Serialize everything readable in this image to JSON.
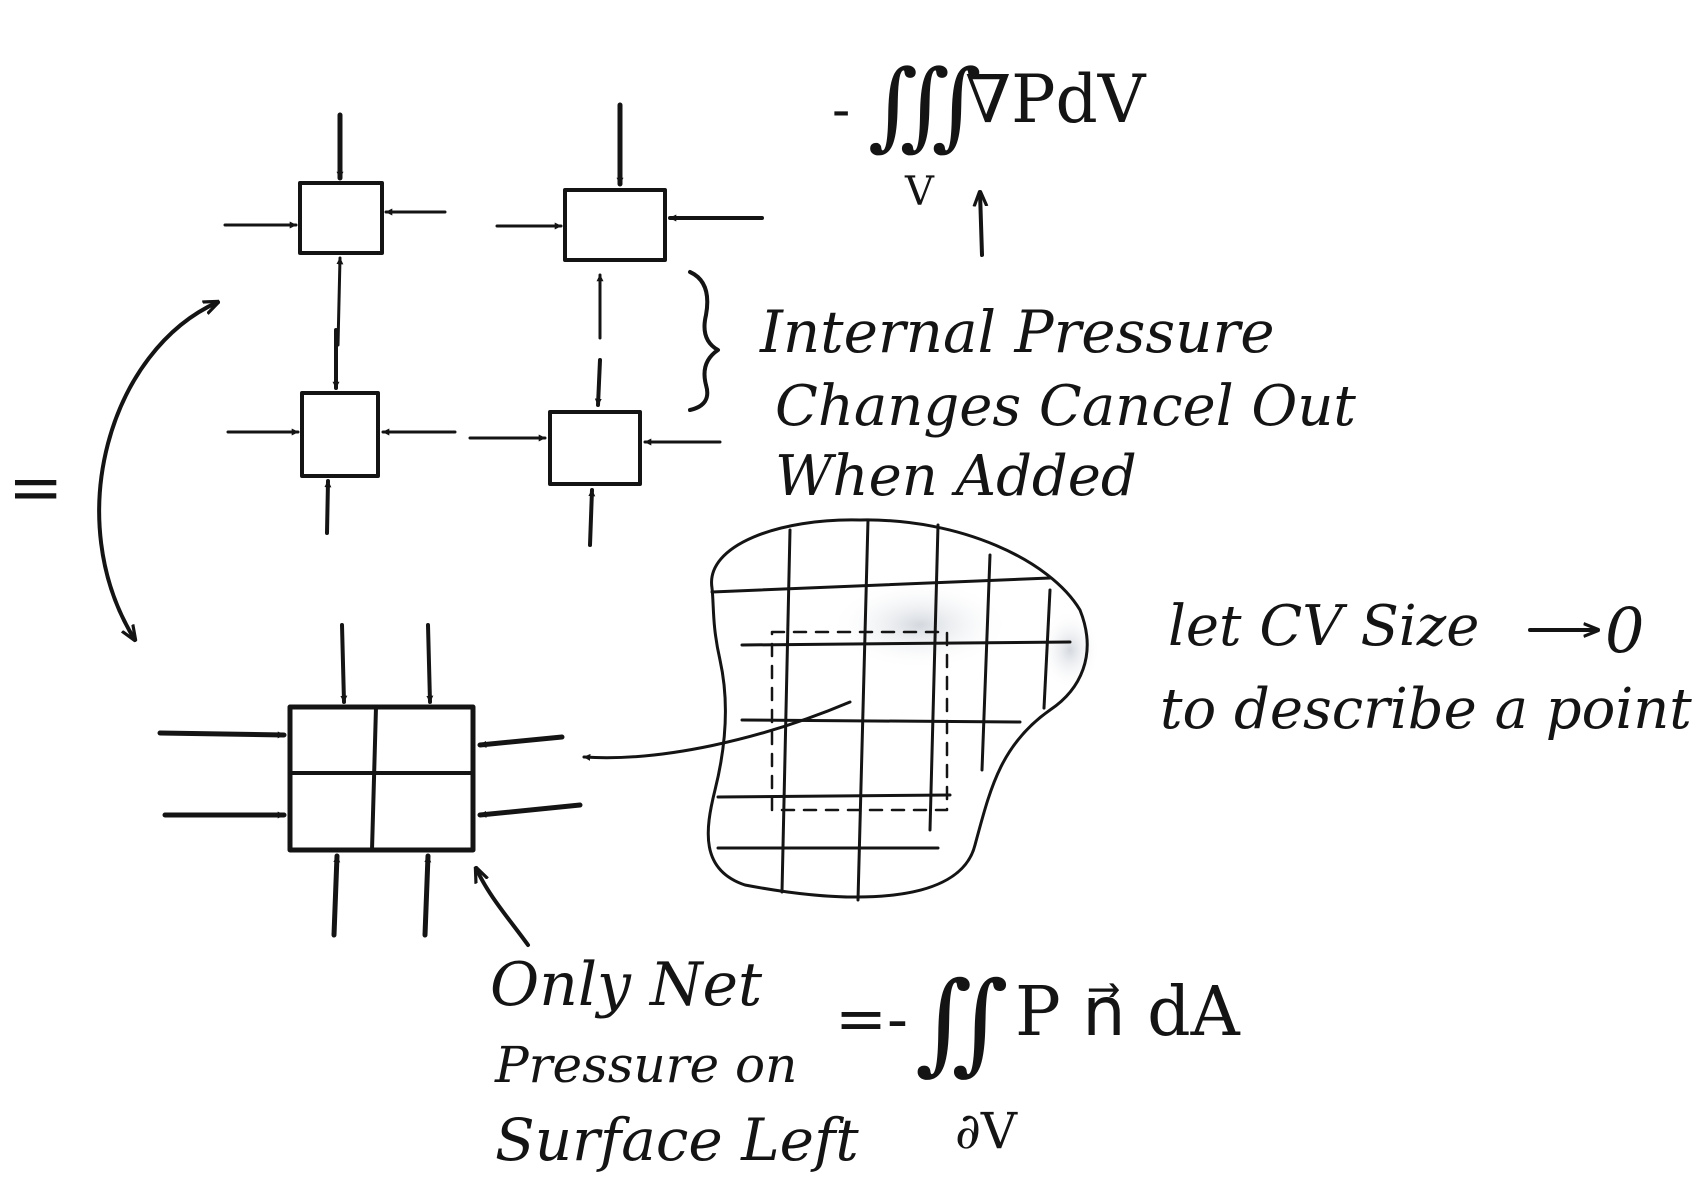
{
  "annotations": {
    "internal_line1": "Internal Pressure",
    "internal_line2": "Changes Cancel Out",
    "internal_line3": "When Added",
    "cv_line1": "let CV Size",
    "cv_zero": "0",
    "cv_line2": "to describe a point",
    "net_line1": "Only Net",
    "net_line2": "Pressure on",
    "net_line3": "Surface Left"
  },
  "equations": {
    "top_prefix": "-",
    "top_integral": "∭",
    "top_body": "∇PdV",
    "top_sub_v": "V",
    "left_equals": "=",
    "bottom_prefix": "=-",
    "bottom_integral": "∬",
    "bottom_body": "P n⃗ dA",
    "bottom_sub": "∂V"
  },
  "colors": {
    "ink": "#141414",
    "smudge": "#d9dde3"
  }
}
